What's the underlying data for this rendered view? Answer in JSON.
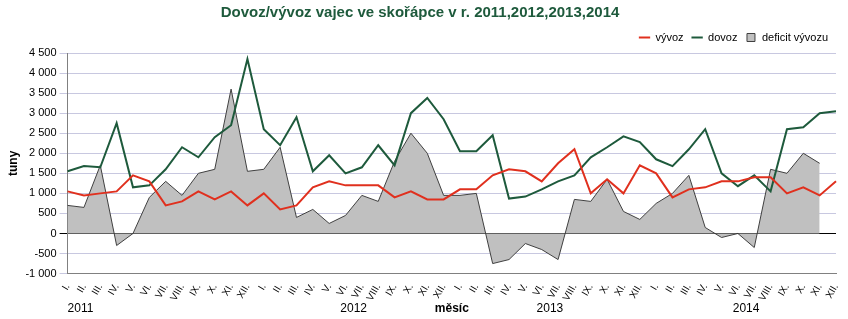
{
  "chart_data": {
    "type": "line",
    "title": "Dovoz/vývoz vajec ve skořápce v r. 2011,2012,2013,2014",
    "x_label": "měsíc",
    "y_label": "tuny",
    "years": [
      "2011",
      "2012",
      "2013",
      "2014"
    ],
    "categories": [
      "I.",
      "II.",
      "III.",
      "IV.",
      "V.",
      "VI.",
      "VII.",
      "VIII.",
      "IX.",
      "X.",
      "XI.",
      "XII.",
      "I.",
      "II.",
      "III.",
      "IV.",
      "V.",
      "VI.",
      "VII.",
      "VIII.",
      "IX.",
      "X.",
      "XI.",
      "XII.",
      "I.",
      "II.",
      "III.",
      "IV.",
      "V.",
      "VI.",
      "VII.",
      "VIII.",
      "IX.",
      "X.",
      "XI.",
      "XII.",
      "I.",
      "II.",
      "III.",
      "IV.",
      "V.",
      "VI.",
      "VII.",
      "VIII.",
      "IX.",
      "X.",
      "XI.",
      "XII."
    ],
    "series": [
      {
        "name": "deficit vývozu",
        "type": "area",
        "color": "#c0c0c0",
        "values": [
          700,
          650,
          1700,
          -300,
          0,
          900,
          1300,
          950,
          1500,
          1600,
          3600,
          1550,
          1600,
          2150,
          400,
          600,
          250,
          450,
          950,
          800,
          1800,
          2500,
          2000,
          950,
          950,
          1000,
          -750,
          -650,
          -250,
          -400,
          -650,
          850,
          800,
          1350,
          550,
          350,
          750,
          1000,
          1450,
          150,
          -100,
          0,
          -350,
          1600,
          1500,
          2000,
          1750,
          null
        ]
      },
      {
        "name": "dovoz",
        "type": "line",
        "color": "#1e5a3c",
        "values": [
          1550,
          1680,
          1650,
          2750,
          1150,
          1200,
          1600,
          2150,
          1900,
          2400,
          2700,
          4350,
          2600,
          2200,
          2900,
          1550,
          1950,
          1500,
          1650,
          2200,
          1700,
          3000,
          3380,
          2850,
          2050,
          2050,
          2450,
          870,
          920,
          1100,
          1300,
          1450,
          1900,
          2150,
          2420,
          2280,
          1850,
          1680,
          2100,
          2600,
          1500,
          1180,
          1450,
          1050,
          2600,
          2650,
          3000,
          3050
        ]
      },
      {
        "name": "vývoz",
        "type": "line",
        "color": "#e0301e",
        "values": [
          1050,
          950,
          1000,
          1050,
          1450,
          1300,
          700,
          800,
          1050,
          850,
          1050,
          700,
          1000,
          600,
          700,
          1150,
          1300,
          1200,
          1200,
          1200,
          900,
          1050,
          850,
          850,
          1100,
          1100,
          1450,
          1600,
          1550,
          1300,
          1750,
          2100,
          1000,
          1350,
          1000,
          1700,
          1500,
          900,
          1100,
          1150,
          1300,
          1300,
          1400,
          1400,
          1000,
          1150,
          950,
          1300
        ]
      }
    ],
    "ylim": [
      -1000,
      4500
    ],
    "yticks": [
      {
        "value": -1000,
        "label": "-1 000"
      },
      -500,
      0,
      500,
      {
        "value": 1000,
        "label": "1 000"
      },
      {
        "value": 1500,
        "label": "1 500"
      },
      {
        "value": 2000,
        "label": "2 000"
      },
      {
        "value": 2500,
        "label": "2 500"
      },
      {
        "value": 3000,
        "label": "3 000"
      },
      {
        "value": 3500,
        "label": "3 500"
      },
      {
        "value": 4000,
        "label": "4 000"
      },
      {
        "value": 4500,
        "label": "4 500"
      }
    ],
    "grid": true,
    "legend": "top-right"
  }
}
